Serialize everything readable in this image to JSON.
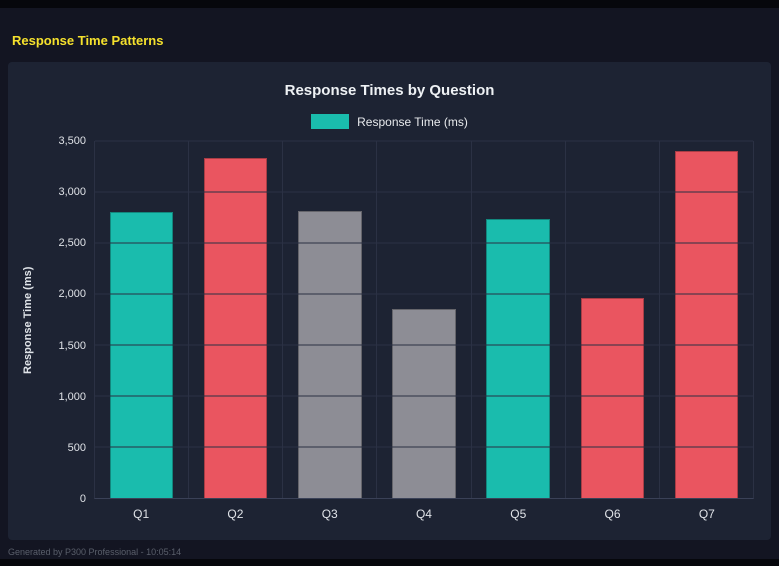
{
  "page": {
    "title": "Response Time Patterns",
    "footer": "Generated by P300 Professional - 10:05:14"
  },
  "chart_data": {
    "type": "bar",
    "title": "Response Times by Question",
    "legend": [
      {
        "label": "Response Time (ms)",
        "color": "#1abcad"
      }
    ],
    "legend_position": "top",
    "categories": [
      "Q1",
      "Q2",
      "Q3",
      "Q4",
      "Q5",
      "Q6",
      "Q7"
    ],
    "values": [
      2800,
      3330,
      2810,
      1850,
      2740,
      1960,
      3400
    ],
    "bar_colors": [
      "#1abcad",
      "#ea5560",
      "#8d8d95",
      "#8d8d95",
      "#1abcad",
      "#ea5560",
      "#ea5560"
    ],
    "xlabel": "",
    "ylabel": "Response Time (ms)",
    "ylim": [
      0,
      3500
    ],
    "yticks": [
      0,
      500,
      1000,
      1500,
      2000,
      2500,
      3000,
      3500
    ],
    "ytick_labels": [
      "0",
      "500",
      "1,000",
      "1,500",
      "2,000",
      "2,500",
      "3,000",
      "3,500"
    ],
    "grid": true,
    "colors": {
      "background": "#131522",
      "panel": "#1d2333",
      "gridline": "#2b3144",
      "accent_yellow": "#f5e12d",
      "teal": "#1abcad",
      "red": "#ea5560",
      "gray": "#8d8d95"
    }
  }
}
